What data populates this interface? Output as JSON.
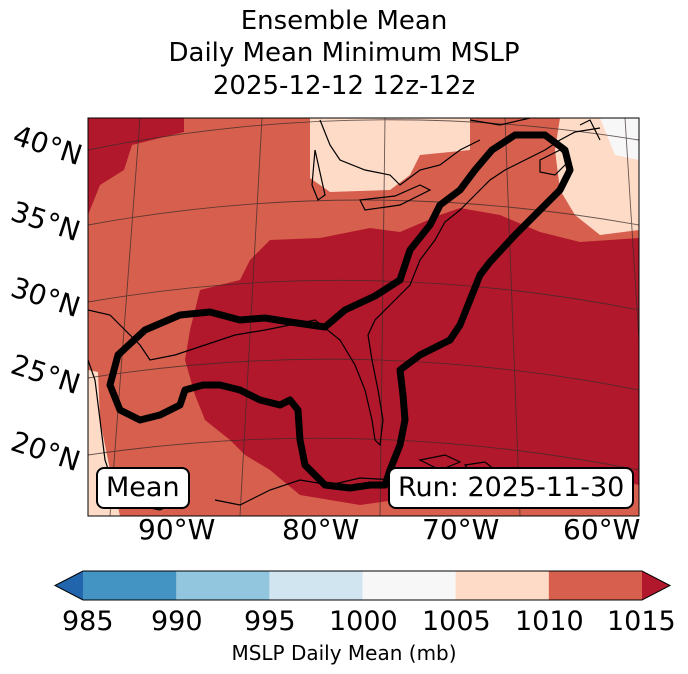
{
  "title": {
    "line1": "Ensemble Mean",
    "line2": "Daily Mean Minimum MSLP",
    "line3": "2025-12-12 12z-12z"
  },
  "map": {
    "lat_labels": [
      "40°N",
      "35°N",
      "30°N",
      "25°N",
      "20°N"
    ],
    "lon_labels": [
      "90°W",
      "80°W",
      "70°W",
      "60°W"
    ],
    "stat_label": "Mean",
    "run_label": "Run: 2025-11-30"
  },
  "colorbar": {
    "ticks": [
      "985",
      "990",
      "995",
      "1000",
      "1005",
      "1010",
      "1015"
    ],
    "label": "MSLP Daily Mean (mb)",
    "colors": [
      "#2166ac",
      "#4393c3",
      "#92c5de",
      "#d1e5f0",
      "#f7f7f7",
      "#fddbc7",
      "#d6604d",
      "#b2182b"
    ]
  }
}
